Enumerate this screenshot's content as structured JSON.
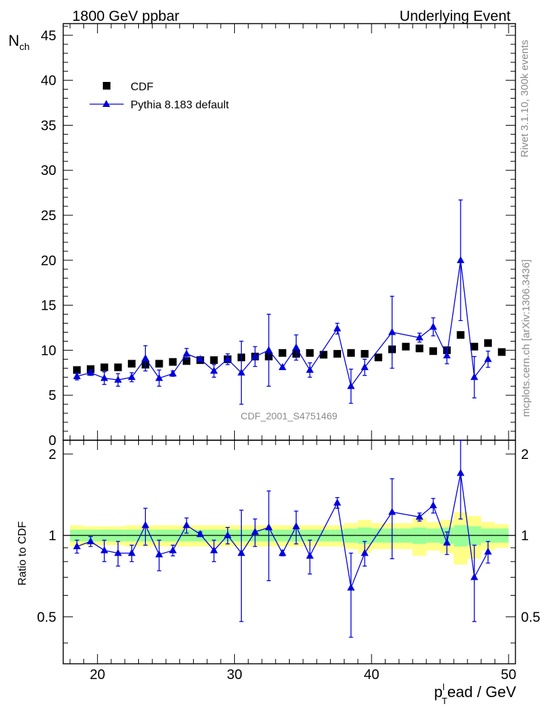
{
  "header": {
    "left": "1800 GeV ppbar",
    "right": "Underlying Event"
  },
  "side_labels": {
    "rivet": "Rivet 3.1.10,  300k events",
    "mcplots": "mcplots.cern.ch [arXiv:1306.3436]"
  },
  "watermark": "CDF_2001_S4751469",
  "colors": {
    "mc": "#0000dd",
    "data": "#000000",
    "band_inner": "#99ff99",
    "band_outer": "#ffff88"
  },
  "chart_data": [
    {
      "type": "scatter",
      "panel": "main",
      "ylabel": "N",
      "ylabel_sub": "ch",
      "xlim": [
        17.5,
        50.5
      ],
      "ylim": [
        0,
        46.3
      ],
      "yticks": [
        0,
        5,
        10,
        15,
        20,
        25,
        30,
        35,
        40,
        45
      ],
      "legend": {
        "placement": "top-left",
        "entries": [
          "CDF",
          "Pythia 8.183 default"
        ]
      },
      "series": [
        {
          "name": "CDF",
          "marker": "square",
          "x": [
            18.5,
            19.5,
            20.5,
            21.5,
            22.5,
            23.5,
            24.5,
            25.5,
            26.5,
            27.5,
            28.5,
            29.5,
            30.5,
            31.5,
            32.5,
            33.5,
            34.5,
            35.5,
            36.5,
            37.5,
            38.5,
            39.5,
            40.5,
            41.5,
            42.5,
            43.5,
            44.5,
            45.5,
            46.5,
            47.5,
            48.5,
            49.5
          ],
          "y": [
            7.8,
            7.9,
            8.1,
            8.1,
            8.5,
            8.4,
            8.5,
            8.7,
            8.8,
            8.9,
            8.9,
            9.0,
            9.2,
            9.3,
            9.3,
            9.7,
            9.6,
            9.7,
            9.5,
            9.6,
            9.7,
            9.6,
            9.2,
            10.1,
            10.4,
            10.2,
            9.9,
            10.0,
            11.7,
            10.4,
            10.8,
            9.8
          ]
        },
        {
          "name": "Pythia 8.183 default",
          "marker": "triangle",
          "x": [
            18.5,
            19.5,
            20.5,
            21.5,
            22.5,
            23.5,
            24.5,
            25.5,
            26.5,
            27.5,
            28.5,
            29.5,
            30.5,
            31.5,
            32.5,
            33.5,
            34.5,
            35.5,
            37.5,
            38.5,
            39.5,
            41.5,
            43.5,
            44.5,
            45.5,
            46.5,
            47.5,
            48.5
          ],
          "y": [
            7.1,
            7.5,
            6.9,
            6.7,
            7.0,
            9.1,
            6.9,
            7.4,
            9.6,
            9.0,
            7.7,
            9.0,
            7.5,
            9.3,
            10.0,
            8.1,
            10.3,
            7.8,
            12.4,
            6.0,
            8.1,
            12.0,
            11.4,
            12.6,
            9.4,
            20.0,
            7.0,
            9.0
          ],
          "yerr": [
            0.4,
            0.3,
            0.7,
            0.7,
            0.5,
            1.4,
            0.9,
            0.3,
            0.6,
            0.2,
            0.7,
            0.6,
            3.5,
            1.1,
            4.0,
            0.2,
            1.4,
            0.8,
            0.6,
            1.9,
            0.9,
            4.0,
            0.5,
            1.0,
            0.9,
            6.7,
            2.3,
            0.9
          ]
        }
      ]
    },
    {
      "type": "scatter",
      "panel": "ratio",
      "ylabel": "Ratio to CDF",
      "xlabel": "p",
      "xlabel_sup": "l",
      "xlabel_sub": "T",
      "xlabel_rest": "ead / GeV",
      "xlim": [
        17.5,
        50.5
      ],
      "ylim": [
        0.335,
        2.25
      ],
      "yticks": [
        0.5,
        1,
        2
      ],
      "xticks": [
        20,
        30,
        40,
        50
      ],
      "reference_line": 1,
      "bands": {
        "x": [
          18.5,
          19.5,
          20.5,
          21.5,
          22.5,
          23.5,
          24.5,
          25.5,
          26.5,
          27.5,
          28.5,
          29.5,
          30.5,
          31.5,
          32.5,
          33.5,
          34.5,
          35.5,
          36.5,
          37.5,
          38.5,
          39.5,
          40.5,
          41.5,
          42.5,
          43.5,
          44.5,
          45.5,
          46.5,
          47.5,
          48.5,
          49.5
        ],
        "inner": [
          0.05,
          0.05,
          0.05,
          0.05,
          0.05,
          0.05,
          0.05,
          0.05,
          0.05,
          0.05,
          0.05,
          0.05,
          0.05,
          0.05,
          0.05,
          0.05,
          0.05,
          0.05,
          0.05,
          0.05,
          0.06,
          0.07,
          0.06,
          0.06,
          0.06,
          0.07,
          0.06,
          0.07,
          0.09,
          0.08,
          0.06,
          0.06
        ],
        "outer": [
          0.09,
          0.08,
          0.08,
          0.08,
          0.09,
          0.09,
          0.09,
          0.09,
          0.09,
          0.09,
          0.09,
          0.09,
          0.09,
          0.09,
          0.09,
          0.09,
          0.09,
          0.09,
          0.09,
          0.09,
          0.11,
          0.14,
          0.11,
          0.11,
          0.11,
          0.16,
          0.12,
          0.14,
          0.22,
          0.18,
          0.12,
          0.1
        ]
      },
      "series": [
        {
          "name": "Pythia 8.183 default",
          "marker": "triangle",
          "x": [
            18.5,
            19.5,
            20.5,
            21.5,
            22.5,
            23.5,
            24.5,
            25.5,
            26.5,
            27.5,
            28.5,
            29.5,
            30.5,
            31.5,
            32.5,
            33.5,
            34.5,
            35.5,
            37.5,
            38.5,
            39.5,
            41.5,
            43.5,
            44.5,
            45.5,
            46.5,
            47.5,
            48.5
          ],
          "y": [
            0.91,
            0.95,
            0.88,
            0.86,
            0.86,
            1.09,
            0.85,
            0.88,
            1.09,
            1.01,
            0.88,
            1.0,
            0.86,
            1.03,
            1.07,
            0.86,
            1.08,
            0.84,
            1.32,
            0.64,
            0.86,
            1.22,
            1.17,
            1.29,
            0.94,
            1.7,
            0.7,
            0.87
          ],
          "yerr": [
            0.05,
            0.04,
            0.08,
            0.09,
            0.06,
            0.17,
            0.11,
            0.04,
            0.07,
            0.02,
            0.08,
            0.07,
            0.38,
            0.12,
            0.39,
            0.02,
            0.15,
            0.12,
            0.06,
            0.22,
            0.09,
            0.4,
            0.04,
            0.08,
            0.09,
            0.55,
            0.22,
            0.08
          ]
        }
      ]
    }
  ]
}
